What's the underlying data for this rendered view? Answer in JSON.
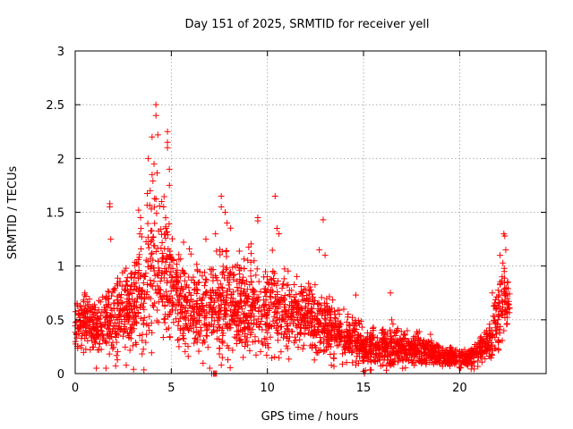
{
  "chart_data": {
    "type": "scatter",
    "title": "Day 151 of 2025, SRMTID for receiver yell",
    "xlabel": "GPS time / hours",
    "ylabel": "SRMTID / TECUs",
    "xlim": [
      0,
      24.5
    ],
    "ylim": [
      0,
      3
    ],
    "xticks": [
      0,
      5,
      10,
      15,
      20
    ],
    "yticks": [
      0,
      0.5,
      1,
      1.5,
      2,
      2.5,
      3
    ],
    "xtick_labels": [
      "0",
      "5",
      "10",
      "15",
      "20"
    ],
    "ytick_labels": [
      "0",
      "0.5",
      "1",
      "1.5",
      "2",
      "2.5",
      "3"
    ],
    "grid": true,
    "marker": "+",
    "color": "#ff0000",
    "series": [
      {
        "name": "SRMTID",
        "envelope": {
          "hours": [
            0,
            0.5,
            1,
            1.5,
            2,
            2.5,
            3,
            3.5,
            4,
            4.5,
            5,
            5.5,
            6,
            6.5,
            7,
            7.5,
            8,
            8.5,
            9,
            9.5,
            10,
            10.5,
            11,
            11.5,
            12,
            12.5,
            13,
            13.5,
            14,
            14.5,
            15,
            15.5,
            16,
            16.5,
            17,
            17.5,
            18,
            18.5,
            19,
            19.5,
            20,
            20.5,
            21,
            21.5,
            22,
            22.3,
            22.6
          ],
          "typical": [
            0.45,
            0.5,
            0.4,
            0.45,
            0.5,
            0.55,
            0.6,
            0.75,
            1.0,
            1.05,
            0.8,
            0.7,
            0.65,
            0.6,
            0.6,
            0.65,
            0.7,
            0.65,
            0.65,
            0.6,
            0.6,
            0.6,
            0.55,
            0.55,
            0.55,
            0.5,
            0.45,
            0.4,
            0.35,
            0.3,
            0.25,
            0.25,
            0.25,
            0.25,
            0.25,
            0.25,
            0.22,
            0.2,
            0.18,
            0.15,
            0.15,
            0.15,
            0.2,
            0.3,
            0.5,
            0.75,
            0.6
          ],
          "spread": [
            0.25,
            0.25,
            0.25,
            0.3,
            0.35,
            0.4,
            0.45,
            0.55,
            0.7,
            0.65,
            0.5,
            0.45,
            0.4,
            0.4,
            0.4,
            0.45,
            0.45,
            0.4,
            0.4,
            0.4,
            0.4,
            0.4,
            0.35,
            0.35,
            0.3,
            0.3,
            0.28,
            0.25,
            0.22,
            0.2,
            0.18,
            0.18,
            0.18,
            0.18,
            0.18,
            0.15,
            0.15,
            0.12,
            0.1,
            0.08,
            0.08,
            0.1,
            0.12,
            0.2,
            0.35,
            0.4,
            0.2
          ],
          "density_per_hour": 120
        },
        "peaks": [
          {
            "x": 4.2,
            "y": 2.5
          },
          {
            "x": 4.2,
            "y": 2.4
          },
          {
            "x": 4.0,
            "y": 2.2
          },
          {
            "x": 4.3,
            "y": 2.22
          },
          {
            "x": 4.8,
            "y": 2.25
          },
          {
            "x": 4.8,
            "y": 2.15
          },
          {
            "x": 4.8,
            "y": 2.1
          },
          {
            "x": 3.8,
            "y": 2.0
          },
          {
            "x": 4.1,
            "y": 1.95
          },
          {
            "x": 4.0,
            "y": 1.85
          },
          {
            "x": 4.9,
            "y": 1.9
          },
          {
            "x": 4.9,
            "y": 1.75
          },
          {
            "x": 3.9,
            "y": 1.7
          },
          {
            "x": 4.5,
            "y": 1.6
          },
          {
            "x": 4.6,
            "y": 1.55
          },
          {
            "x": 3.3,
            "y": 1.52
          },
          {
            "x": 3.4,
            "y": 1.45
          },
          {
            "x": 1.8,
            "y": 1.58
          },
          {
            "x": 1.8,
            "y": 1.55
          },
          {
            "x": 1.85,
            "y": 1.25
          },
          {
            "x": 7.6,
            "y": 1.65
          },
          {
            "x": 7.6,
            "y": 1.55
          },
          {
            "x": 7.8,
            "y": 1.5
          },
          {
            "x": 7.9,
            "y": 1.4
          },
          {
            "x": 9.5,
            "y": 1.45
          },
          {
            "x": 9.5,
            "y": 1.42
          },
          {
            "x": 10.4,
            "y": 1.65
          },
          {
            "x": 10.5,
            "y": 1.35
          },
          {
            "x": 10.6,
            "y": 1.3
          },
          {
            "x": 12.9,
            "y": 1.43
          },
          {
            "x": 12.7,
            "y": 1.15
          },
          {
            "x": 13.0,
            "y": 1.1
          },
          {
            "x": 14.6,
            "y": 0.73
          },
          {
            "x": 16.4,
            "y": 0.75
          },
          {
            "x": 22.3,
            "y": 1.3
          },
          {
            "x": 22.35,
            "y": 1.28
          },
          {
            "x": 22.4,
            "y": 1.15
          },
          {
            "x": 22.1,
            "y": 1.1
          },
          {
            "x": 21.7,
            "y": 0.75
          },
          {
            "x": 7.3,
            "y": 1.3
          },
          {
            "x": 0.1,
            "y": 0.65
          },
          {
            "x": 0.5,
            "y": 0.75
          },
          {
            "x": 6.8,
            "y": 1.25
          }
        ],
        "low_points": [
          {
            "x": 7.1,
            "y": 0.0
          },
          {
            "x": 7.2,
            "y": 0.0
          },
          {
            "x": 7.25,
            "y": 0.0
          },
          {
            "x": 7.3,
            "y": 0.0
          },
          {
            "x": 7.35,
            "y": 0.0
          },
          {
            "x": 15.0,
            "y": 0.02
          },
          {
            "x": 15.05,
            "y": 0.0
          },
          {
            "x": 15.1,
            "y": 0.03
          },
          {
            "x": 1.1,
            "y": 0.05
          },
          {
            "x": 1.6,
            "y": 0.05
          },
          {
            "x": 7.0,
            "y": 0.05
          },
          {
            "x": 7.6,
            "y": 0.08
          }
        ]
      }
    ]
  }
}
